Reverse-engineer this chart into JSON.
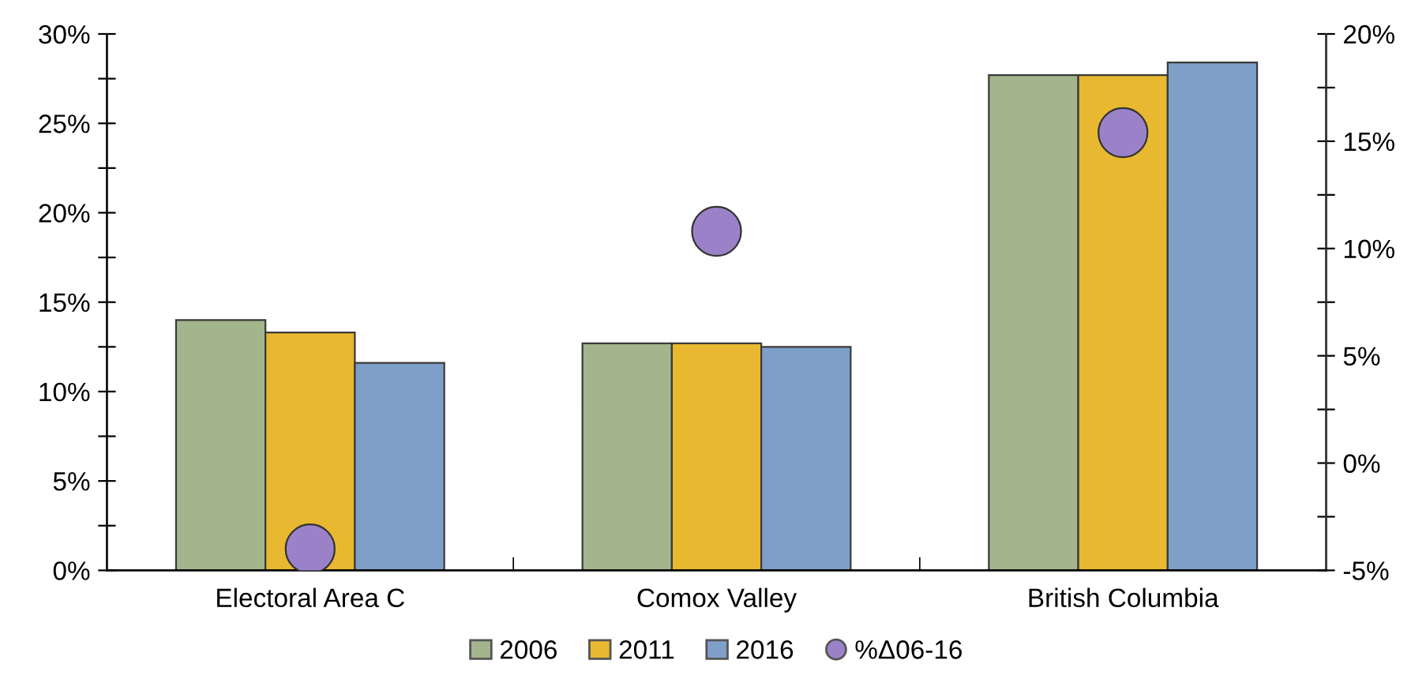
{
  "chart_data": {
    "type": "bar",
    "categories": [
      "Electoral Area C",
      "Comox Valley",
      "British Columbia"
    ],
    "series": [
      {
        "name": "2006",
        "color": "#a3b58c",
        "values": [
          14.0,
          12.7,
          27.7
        ]
      },
      {
        "name": "2011",
        "color": "#e8b830",
        "values": [
          13.3,
          12.7,
          27.7
        ]
      },
      {
        "name": "2016",
        "color": "#7f9fc8",
        "values": [
          11.6,
          12.5,
          28.4
        ]
      },
      {
        "name": "%Δ06-16",
        "type": "scatter",
        "axis": "y2",
        "color": "#9b82c8",
        "values": [
          -4.0,
          10.8,
          15.4
        ]
      }
    ],
    "ylim": [
      0,
      30
    ],
    "yticks": [
      {
        "value": 0,
        "label": "0%"
      },
      {
        "value": 2.5,
        "label": null
      },
      {
        "value": 5,
        "label": "5%"
      },
      {
        "value": 7.5,
        "label": null
      },
      {
        "value": 10,
        "label": "10%"
      },
      {
        "value": 12.5,
        "label": null
      },
      {
        "value": 15,
        "label": "15%"
      },
      {
        "value": 17.5,
        "label": null
      },
      {
        "value": 20,
        "label": "20%"
      },
      {
        "value": 22.5,
        "label": null
      },
      {
        "value": 25,
        "label": "25%"
      },
      {
        "value": 27.5,
        "label": null
      },
      {
        "value": 30,
        "label": "30%"
      }
    ],
    "y2lim": [
      -5,
      20
    ],
    "y2ticks": [
      {
        "value": -5,
        "label": "-5%"
      },
      {
        "value": -2.5,
        "label": null
      },
      {
        "value": 0,
        "label": "0%"
      },
      {
        "value": 2.5,
        "label": null
      },
      {
        "value": 5,
        "label": "5%"
      },
      {
        "value": 7.5,
        "label": null
      },
      {
        "value": 10,
        "label": "10%"
      },
      {
        "value": 12.5,
        "label": null
      },
      {
        "value": 15,
        "label": "15%"
      },
      {
        "value": 17.5,
        "label": null
      },
      {
        "value": 20,
        "label": "20%"
      }
    ],
    "marker": "circle",
    "legend": "bottom",
    "grid": false
  }
}
